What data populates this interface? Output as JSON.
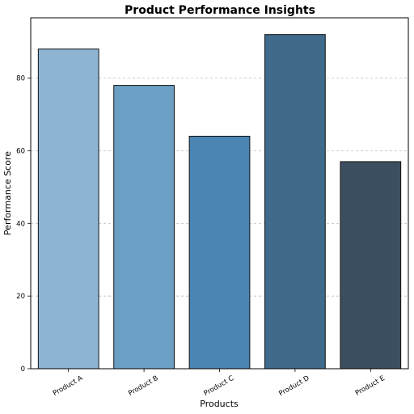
{
  "chart_data": {
    "type": "bar",
    "title": "Product Performance Insights",
    "xlabel": "Products",
    "ylabel": "Performance Score",
    "categories": [
      "Product A",
      "Product B",
      "Product C",
      "Product D",
      "Product E"
    ],
    "values": [
      88,
      78,
      64,
      92,
      57
    ],
    "colors": [
      "#8db4d3",
      "#6b9fc3",
      "#4a85b3",
      "#3f6a8b",
      "#3c4f60"
    ],
    "ylim": [
      0,
      96.6
    ],
    "yticks": [
      0,
      20,
      40,
      60,
      80
    ],
    "grid": "horizontal dashed",
    "legend": "none"
  }
}
